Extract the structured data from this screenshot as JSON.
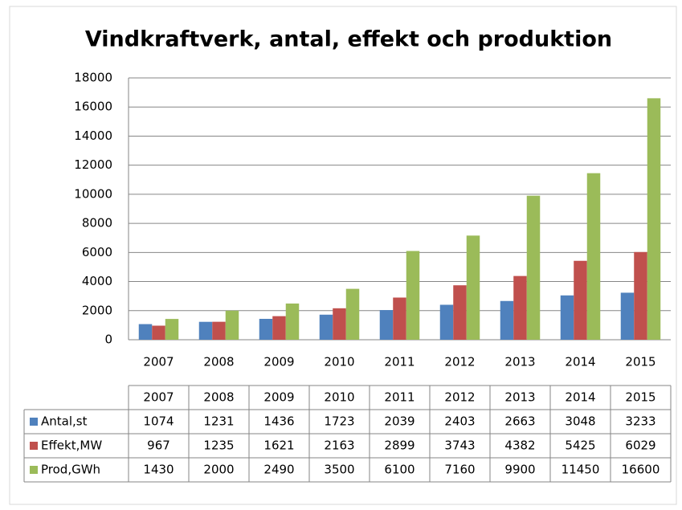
{
  "chart_data": {
    "type": "bar",
    "title": "Vindkraftverk, antal, effekt och produktion",
    "categories": [
      "2007",
      "2008",
      "2009",
      "2010",
      "2011",
      "2012",
      "2013",
      "2014",
      "2015"
    ],
    "series": [
      {
        "name": "Antal,st",
        "color": "#4f81bd",
        "values": [
          1074,
          1231,
          1436,
          1723,
          2039,
          2403,
          2663,
          3048,
          3233
        ]
      },
      {
        "name": "Effekt,MW",
        "color": "#c0504d",
        "values": [
          967,
          1235,
          1621,
          2163,
          2899,
          3743,
          4382,
          5425,
          6029
        ]
      },
      {
        "name": "Prod,GWh",
        "color": "#9bbb59",
        "values": [
          1430,
          2000,
          2490,
          3500,
          6100,
          7160,
          9900,
          11450,
          16600
        ]
      }
    ],
    "ylim": [
      0,
      18000
    ],
    "yticks": [
      0,
      2000,
      4000,
      6000,
      8000,
      10000,
      12000,
      14000,
      16000,
      18000
    ],
    "grid": true
  }
}
